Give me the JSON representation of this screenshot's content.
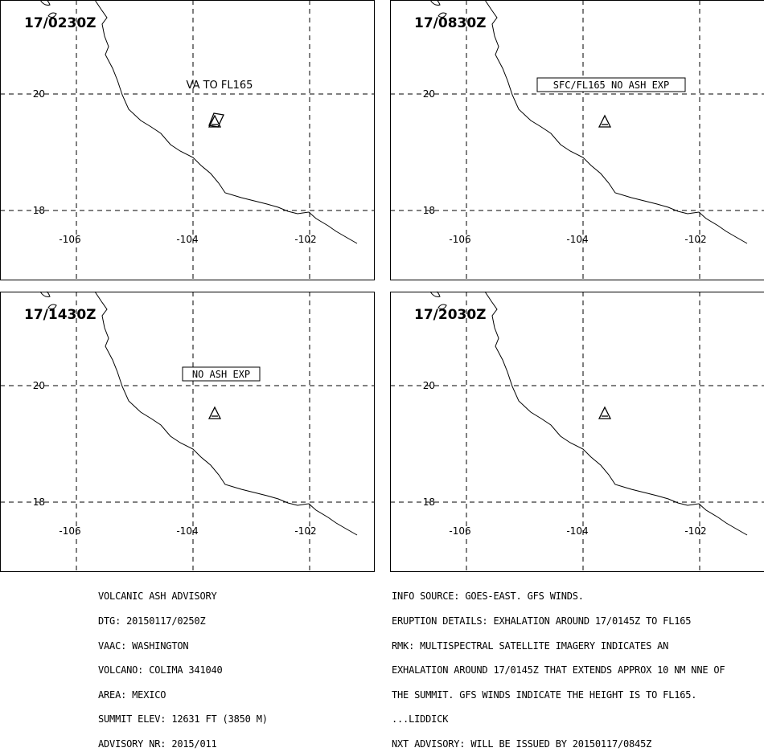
{
  "panels": [
    {
      "time": "17/0230Z",
      "label": "VA TO FL165",
      "label_boxed": false,
      "ash_polygon": true
    },
    {
      "time": "17/0830Z",
      "label": "SFC/FL165 NO ASH EXP",
      "label_boxed": true,
      "ash_polygon": false
    },
    {
      "time": "17/1430Z",
      "label": "NO ASH EXP",
      "label_boxed": true,
      "ash_polygon": false
    },
    {
      "time": "17/2030Z",
      "label": "",
      "label_boxed": false,
      "ash_polygon": false
    }
  ],
  "axes": {
    "lat_labels": [
      "20",
      "18"
    ],
    "lon_labels": [
      "-106",
      "-104",
      "-102"
    ]
  },
  "advisory": {
    "left": [
      "VOLCANIC ASH ADVISORY",
      "DTG: 20150117/0250Z",
      "VAAC: WASHINGTON",
      "VOLCANO: COLIMA 341040",
      "AREA: MEXICO",
      "SUMMIT ELEV: 12631 FT (3850 M)",
      "ADVISORY NR: 2015/011"
    ],
    "right": [
      "INFO SOURCE: GOES-EAST. GFS WINDS.",
      "ERUPTION DETAILS: EXHALATION AROUND 17/0145Z TO FL165",
      "RMK: MULTISPECTRAL SATELLITE IMAGERY INDICATES AN",
      "EXHALATION AROUND 17/0145Z THAT EXTENDS APPROX 10 NM NNE OF",
      "THE SUMMIT. GFS WINDS INDICATE THE HEIGHT IS TO FL165.",
      "...LIDDICK",
      "NXT ADVISORY: WILL BE ISSUED BY 20150117/0845Z"
    ]
  },
  "colors": {
    "ink": "#000000",
    "background": "#ffffff"
  }
}
